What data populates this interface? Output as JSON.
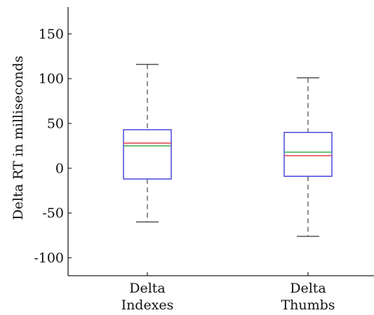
{
  "chart_data": {
    "type": "box",
    "ylabel": "Delta RT in milliseconds",
    "ylim": [
      -120,
      180
    ],
    "yticks": [
      150,
      100,
      50,
      0,
      -50,
      -100
    ],
    "ytick_labels": [
      "150",
      "100",
      "50",
      "0",
      "-50",
      "-100"
    ],
    "grid": false,
    "categories": [
      {
        "label_lines": [
          "Delta",
          "Indexes"
        ]
      },
      {
        "label_lines": [
          "Delta",
          "Thumbs"
        ]
      }
    ],
    "boxes": [
      {
        "whisker_low": -60,
        "q1": -12,
        "median": 28,
        "mean": 25,
        "q3": 43,
        "whisker_high": 116
      },
      {
        "whisker_low": -76,
        "q1": -9,
        "median": 14,
        "mean": 18,
        "q3": 40,
        "whisker_high": 101
      }
    ],
    "colors": {
      "box": "#3b3bdc",
      "median": "#e0414a",
      "mean": "#3fae49",
      "whisker": "#555555",
      "axis": "#222222"
    }
  }
}
